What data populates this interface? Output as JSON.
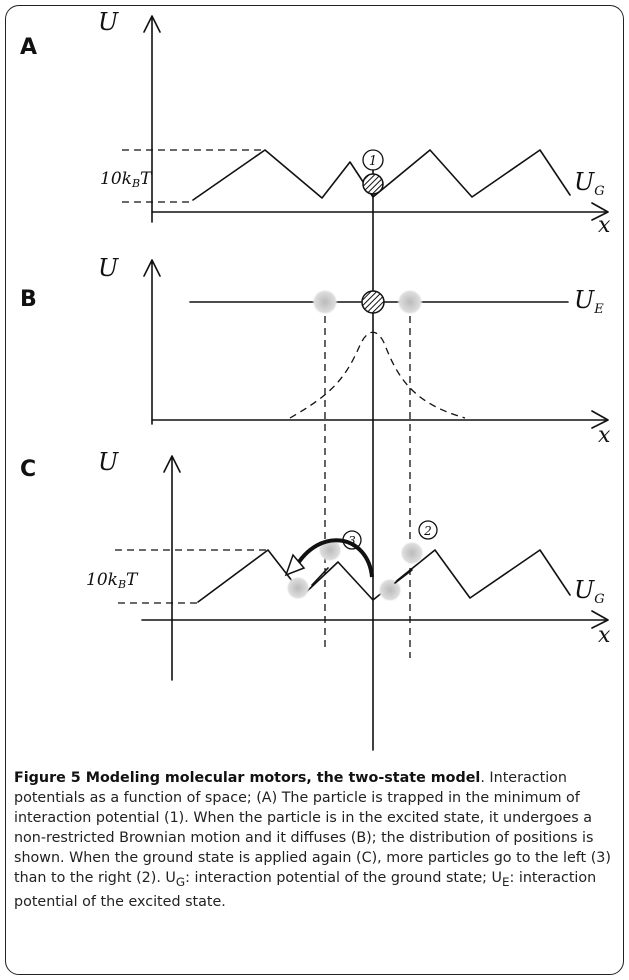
{
  "panels": [
    {
      "label": "A",
      "axis_label": "U",
      "x_label": "x",
      "energy_label": {
        "main": "10k",
        "sub": "B",
        "tail": "T"
      },
      "curve_label": {
        "main": "U",
        "sub": "G"
      },
      "marker": "1"
    },
    {
      "label": "B",
      "axis_label": "U",
      "x_label": "x",
      "curve_label": {
        "main": "U",
        "sub": "E"
      }
    },
    {
      "label": "C",
      "axis_label": "U",
      "x_label": "x",
      "energy_label": {
        "main": "10k",
        "sub": "B",
        "tail": "T"
      },
      "curve_label": {
        "main": "U",
        "sub": "G"
      },
      "markers": [
        "3",
        "2"
      ]
    }
  ],
  "caption": {
    "title": "Figure 5 Modeling molecular motors, the two-state model",
    "parts": [
      ".",
      " Interaction potentials as a function of space; (A) The particle is trapped in the minimum of interaction potential (1). When the particle is in the excited state, it undergoes a non-restricted Brownian motion and it diffuses (B); the distribution of positions is shown. When the ground state is applied again (C), more particles go to the left (3) than to the right (2). U",
      "G",
      ": interaction potential of the ground state; U",
      "E",
      ": interaction potential of the excited state."
    ]
  }
}
